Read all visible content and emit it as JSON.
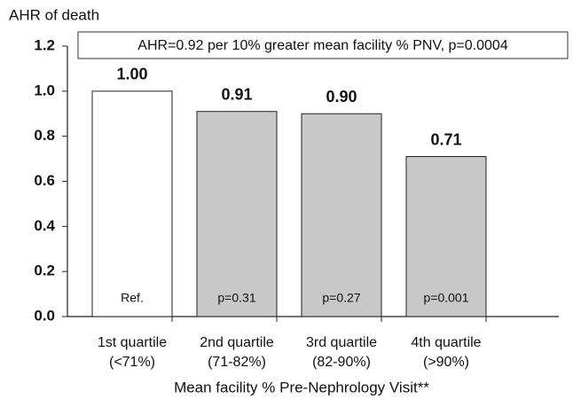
{
  "chart_data": {
    "type": "bar",
    "y_axis_label": "AHR of death",
    "annotation": "AHR=0.92 per 10% greater mean facility % PNV, p=0.0004",
    "x_axis_label": "Mean facility % Pre-Nephrology Visit**",
    "categories": [
      "1st quartile",
      "2nd quartile",
      "3rd quartile",
      "4th quartile"
    ],
    "category_ranges": [
      "(<71%)",
      "(71-82%)",
      "(82-90%)",
      "(>90%)"
    ],
    "values": [
      1.0,
      0.91,
      0.9,
      0.71
    ],
    "value_labels": [
      "1.00",
      "0.91",
      "0.90",
      "0.71"
    ],
    "bar_notes": [
      "Ref.",
      "p=0.31",
      "p=0.27",
      "p=0.001"
    ],
    "colors": [
      "#ffffff",
      "#c8c8c8",
      "#c8c8c8",
      "#c8c8c8"
    ],
    "ylim": [
      0,
      1.2
    ],
    "yticks": [
      {
        "value": 0,
        "label": "0.0"
      },
      0.2,
      0.4,
      0.6,
      0.8,
      {
        "value": 1,
        "label": "1.0"
      },
      1.2
    ]
  }
}
